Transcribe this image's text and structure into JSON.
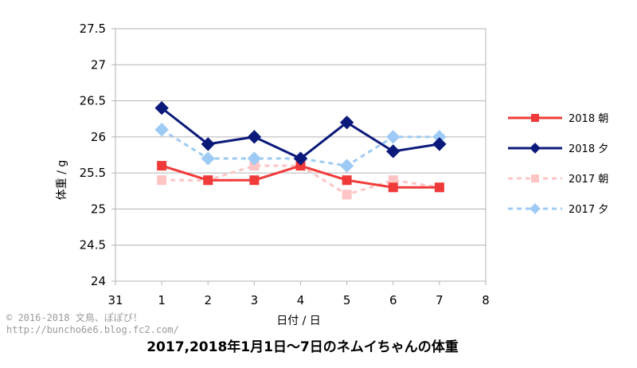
{
  "chart_data": {
    "type": "line",
    "xlabel": "日付 / 日",
    "ylabel": "体重 / g",
    "xlim": [
      0,
      8
    ],
    "ylim": [
      24,
      27.5
    ],
    "x_ticks": [
      0,
      1,
      2,
      3,
      4,
      5,
      6,
      7,
      8
    ],
    "x_tick_labels": [
      "31",
      "1",
      "2",
      "3",
      "4",
      "5",
      "6",
      "7",
      "8"
    ],
    "y_ticks": [
      24,
      24.5,
      25,
      25.5,
      26,
      26.5,
      27,
      27.5
    ],
    "y_tick_labels": [
      "24",
      "24.5",
      "25",
      "25.5",
      "26",
      "26.5",
      "27",
      "27.5"
    ],
    "grid": true,
    "legend_position": "right",
    "x": [
      1,
      2,
      3,
      4,
      5,
      6,
      7
    ],
    "series": [
      {
        "name": "2018 朝",
        "values": [
          25.6,
          25.4,
          25.4,
          25.6,
          25.4,
          25.3,
          25.3
        ],
        "color": "#f03a3a",
        "dashed": false,
        "marker": "square"
      },
      {
        "name": "2018 夕",
        "values": [
          26.4,
          25.9,
          26.0,
          25.7,
          26.2,
          25.8,
          25.9
        ],
        "color": "#0b1a7a",
        "dashed": false,
        "marker": "diamond"
      },
      {
        "name": "2017 朝",
        "values": [
          25.4,
          25.4,
          25.6,
          25.6,
          25.2,
          25.4,
          25.3
        ],
        "color": "#ffc4c4",
        "dashed": true,
        "marker": "square"
      },
      {
        "name": "2017 夕",
        "values": [
          26.1,
          25.7,
          25.7,
          25.7,
          25.6,
          26.0,
          26.0
        ],
        "color": "#9ecbf5",
        "dashed": true,
        "marker": "diamond"
      }
    ]
  },
  "credit": {
    "line1": "© 2016-2018 文鳥、ぽぽぴ！",
    "line2": "http://buncho6e6.blog.fc2.com/"
  },
  "caption": "2017,2018年1月1日〜7日のネムイちゃんの体重"
}
